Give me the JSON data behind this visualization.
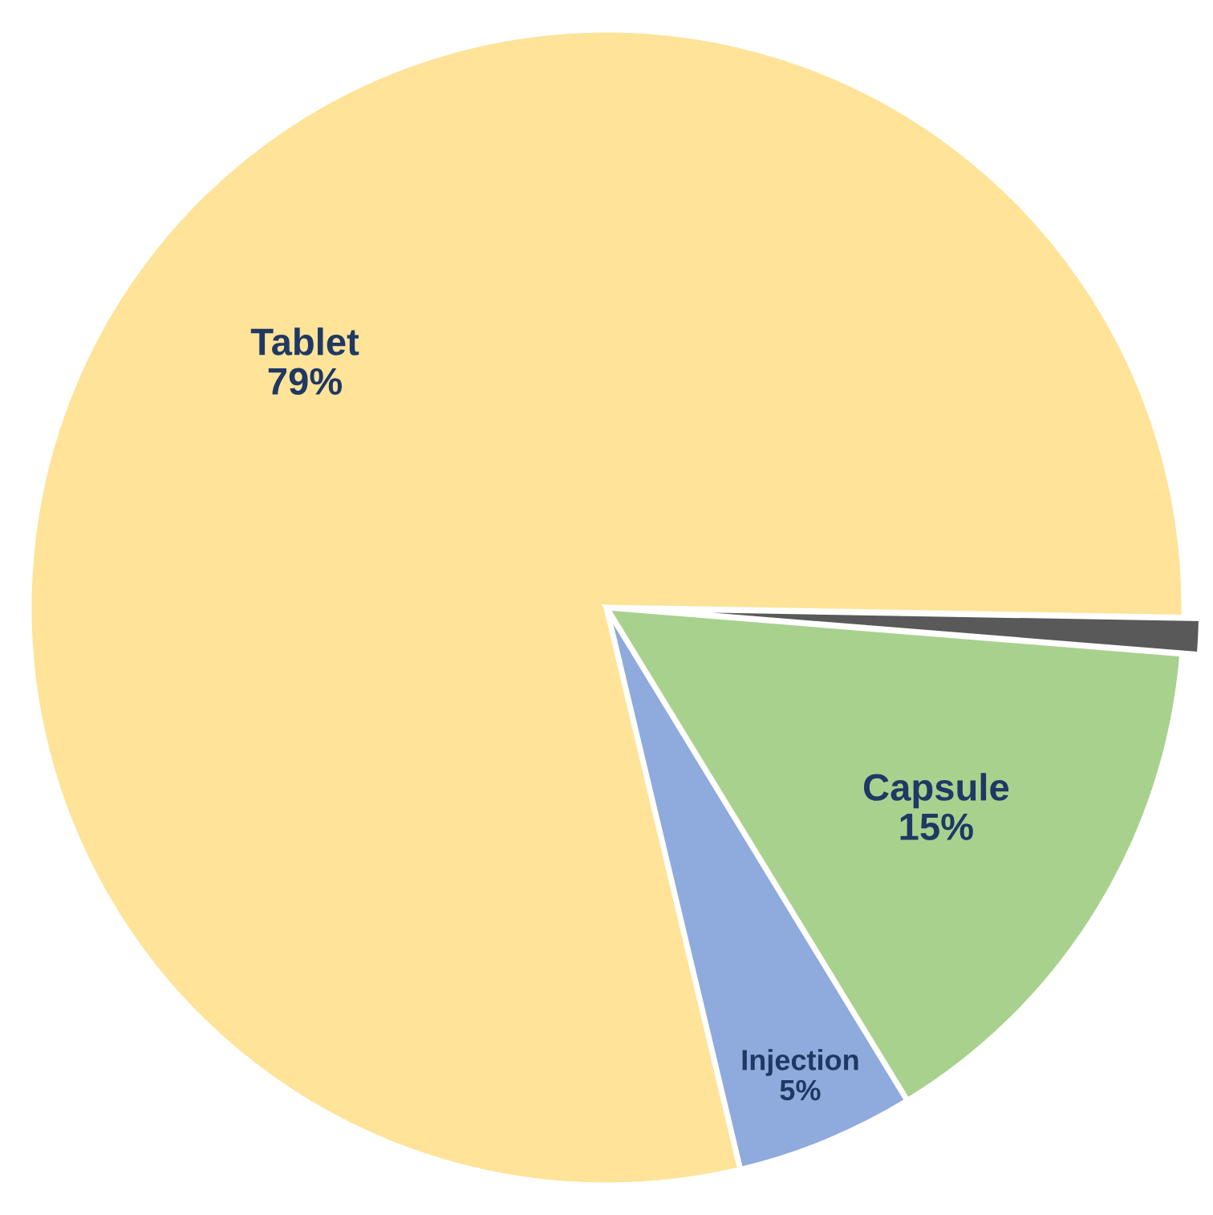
{
  "chart_data": {
    "type": "pie",
    "categories": [
      "Tablet",
      "Injection",
      "Capsule",
      null
    ],
    "values": [
      79,
      5,
      15,
      1
    ],
    "value_labels": [
      "79%",
      "5%",
      "15%",
      null
    ],
    "colors": [
      "#fee398",
      "#8faadc",
      "#a9d18e",
      "#595959"
    ],
    "legend": false
  }
}
